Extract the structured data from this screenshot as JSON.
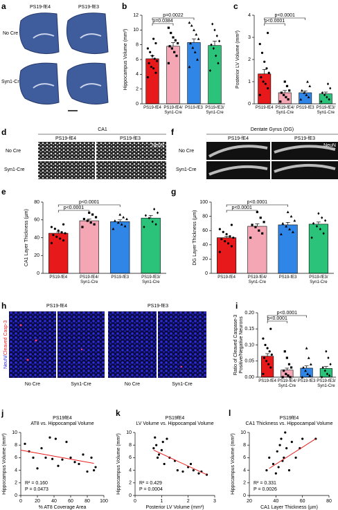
{
  "image_panels": [
    {
      "panel": "a",
      "columns": [
        "PS19-fE4",
        "PS19-fE3"
      ],
      "rows": [
        "No Cre",
        "Syn1-Cre"
      ]
    },
    {
      "panel": "d",
      "title": "CA1",
      "columns": [
        "PS19-fE4",
        "PS19-fE3"
      ],
      "rows": [
        "No Cre",
        "Syn1-Cre"
      ],
      "stain": "NeuN"
    },
    {
      "panel": "f",
      "title": "Dentate Gyrus (DG)",
      "columns": [
        "PS19-fE4",
        "PS19-fE3"
      ],
      "rows": [
        "No Cre",
        "Syn1-Cre"
      ],
      "stain": "NeuN"
    },
    {
      "panel": "h",
      "columns": [
        "PS19-fE4",
        "PS19-fE3"
      ],
      "bottom": [
        "No Cre",
        "Syn1-Cre",
        "No Cre",
        "Syn1-Cre"
      ],
      "stain": [
        "NeuN/",
        "Cleaved Casp-3"
      ]
    }
  ],
  "chart_data": [
    {
      "type": "bar",
      "panel": "b",
      "ylabel": "Hippocampus Volume (mm³)",
      "categories": [
        "PS19-fE4",
        "PS19-fE4/\nSyn1-Cre",
        "PS19-fE3",
        "PS19-fE3/\nSyn1-Cre"
      ],
      "values": [
        6.1,
        7.8,
        8.3,
        7.9
      ],
      "errors": [
        0.4,
        0.5,
        0.5,
        0.6
      ],
      "colors": [
        "#e8191a",
        "#f4a6b4",
        "#2f86e6",
        "#2bc27a"
      ],
      "markers": [
        "circle",
        "square",
        "triangle",
        "diamond"
      ],
      "points": [
        [
          3.6,
          4.2,
          4.8,
          5.0,
          5.5,
          5.8,
          6.1,
          6.5,
          7.0,
          7.5,
          8.2,
          8.8
        ],
        [
          5.5,
          6.5,
          7.0,
          7.5,
          7.8,
          8.2,
          8.6,
          9.0,
          9.6,
          10.3
        ],
        [
          5.0,
          6.0,
          7.0,
          7.6,
          8.2,
          8.8,
          9.4,
          10.0,
          10.6,
          11.0
        ],
        [
          4.5,
          5.5,
          6.5,
          7.5,
          8.0,
          8.5,
          9.2,
          10.0,
          10.8
        ]
      ],
      "comparisons": [
        {
          "pair": [
            0,
            1
          ],
          "label": "p=0.0384"
        },
        {
          "pair": [
            0,
            2
          ],
          "label": "p=0.0022"
        }
      ],
      "ylim": [
        0,
        12
      ],
      "yticks": [
        0,
        2,
        4,
        6,
        8,
        10,
        12
      ]
    },
    {
      "type": "bar",
      "panel": "c",
      "ylabel": "Posterior LV Volume (mm³)",
      "categories": [
        "PS19-fE4",
        "PS19-fE4/\nSyn1-Cre",
        "PS19-fE3",
        "PS19-fE3/\nSyn1-Cre"
      ],
      "values": [
        1.35,
        0.5,
        0.5,
        0.45
      ],
      "errors": [
        0.2,
        0.1,
        0.08,
        0.08
      ],
      "colors": [
        "#e8191a",
        "#f4a6b4",
        "#2f86e6",
        "#2bc27a"
      ],
      "markers": [
        "circle",
        "square",
        "triangle",
        "diamond"
      ],
      "points": [
        [
          0.4,
          0.7,
          0.9,
          1.0,
          1.2,
          1.4,
          1.6,
          1.9,
          2.3,
          2.7,
          3.2
        ],
        [
          0.1,
          0.2,
          0.3,
          0.4,
          0.5,
          0.6,
          0.8,
          1.0
        ],
        [
          0.2,
          0.3,
          0.4,
          0.5,
          0.6,
          0.8,
          1.0
        ],
        [
          0.1,
          0.2,
          0.3,
          0.4,
          0.5,
          0.7,
          0.9
        ]
      ],
      "comparisons": [
        {
          "pair": [
            0,
            1
          ],
          "label": "p<0.0001"
        },
        {
          "pair": [
            0,
            2
          ],
          "label": "p<0.0001"
        }
      ],
      "ylim": [
        0,
        4
      ],
      "yticks": [
        0,
        1,
        2,
        3,
        4
      ]
    },
    {
      "type": "bar",
      "panel": "e",
      "ylabel": "CA1 Layer Thickness (µm)",
      "categories": [
        "PS19-fE4",
        "PS19-fE4/\nSyn1-Cre",
        "PS19-fE3",
        "PS19-fE3/\nSyn1-Cre"
      ],
      "values": [
        45,
        59,
        58,
        62
      ],
      "errors": [
        1.5,
        2,
        2,
        3
      ],
      "colors": [
        "#e8191a",
        "#f4a6b4",
        "#2f86e6",
        "#2bc27a"
      ],
      "markers": [
        "circle",
        "square",
        "triangle",
        "diamond"
      ],
      "points": [
        [
          34,
          37,
          39,
          41,
          43,
          45,
          46,
          48,
          50,
          52,
          55
        ],
        [
          52,
          55,
          57,
          59,
          61,
          63,
          66,
          68
        ],
        [
          50,
          53,
          55,
          57,
          59,
          61,
          63,
          66
        ],
        [
          52,
          55,
          58,
          62,
          65,
          68,
          72
        ]
      ],
      "comparisons": [
        {
          "pair": [
            0,
            1
          ],
          "label": "p<0.0001"
        },
        {
          "pair": [
            0,
            2
          ],
          "label": "p<0.0001"
        }
      ],
      "ylim": [
        0,
        80
      ],
      "yticks": [
        0,
        20,
        40,
        60,
        80
      ]
    },
    {
      "type": "bar",
      "panel": "g",
      "ylabel": "DG Layer Thickness (µm)",
      "categories": [
        "PS19-fE4",
        "PS19-fE4/\nSyn1-Cre",
        "PS19-fE3",
        "PS19-fE3/\nSyn1-Cre"
      ],
      "values": [
        50,
        66,
        68,
        69
      ],
      "errors": [
        2,
        3.5,
        3.5,
        3
      ],
      "colors": [
        "#e8191a",
        "#f4a6b4",
        "#2f86e6",
        "#2bc27a"
      ],
      "markers": [
        "circle",
        "square",
        "triangle",
        "diamond"
      ],
      "points": [
        [
          30,
          38,
          42,
          45,
          48,
          50,
          52,
          55,
          58,
          62,
          68
        ],
        [
          50,
          56,
          60,
          65,
          68,
          72,
          78,
          86
        ],
        [
          55,
          58,
          62,
          66,
          70,
          74,
          80,
          86
        ],
        [
          50,
          56,
          62,
          66,
          70,
          74,
          78,
          84
        ]
      ],
      "comparisons": [
        {
          "pair": [
            0,
            1
          ],
          "label": "p<0.0001"
        },
        {
          "pair": [
            0,
            2
          ],
          "label": "p<0.0001"
        }
      ],
      "ylim": [
        0,
        100
      ],
      "yticks": [
        0,
        20,
        40,
        60,
        80,
        100
      ]
    },
    {
      "type": "bar",
      "panel": "i",
      "ylabel": [
        "Ratio of Cleaved Caspase-3",
        "Positive/Negative Neurons"
      ],
      "categories": [
        "PS19-fE4",
        "PS19-fE4/\nSyn1-Cre",
        "PS19-fE3",
        "PS19-fE3/\nSyn1-Cre"
      ],
      "values": [
        0.065,
        0.022,
        0.028,
        0.027
      ],
      "errors": [
        0.008,
        0.006,
        0.007,
        0.006
      ],
      "colors": [
        "#e8191a",
        "#f4a6b4",
        "#2f86e6",
        "#2bc27a"
      ],
      "markers": [
        "circle",
        "square",
        "triangle",
        "diamond"
      ],
      "points": [
        [
          0.01,
          0.03,
          0.04,
          0.05,
          0.06,
          0.07,
          0.08,
          0.09,
          0.1,
          0.12,
          0.15
        ],
        [
          0,
          0,
          0.005,
          0.01,
          0.02,
          0.03,
          0.04,
          0.06,
          0.08
        ],
        [
          0,
          0.005,
          0.01,
          0.02,
          0.03,
          0.04,
          0.06,
          0.09
        ],
        [
          0,
          0.005,
          0.01,
          0.02,
          0.03,
          0.04,
          0.06,
          0.08
        ]
      ],
      "comparisons": [
        {
          "pair": [
            0,
            1
          ],
          "label": "p<0.0001"
        },
        {
          "pair": [
            0,
            2
          ],
          "label": "p<0.0001"
        }
      ],
      "ylim": [
        0,
        0.2
      ],
      "yticks": [
        {
          "value": 0,
          "label": "0.00"
        },
        {
          "value": 0.05,
          "label": "0.05"
        },
        {
          "value": 0.1,
          "label": "0.10"
        },
        {
          "value": 0.15,
          "label": "0.15"
        },
        {
          "value": 0.2,
          "label": "0.20"
        }
      ]
    },
    {
      "type": "scatter",
      "panel": "j",
      "title": "PS19fE4",
      "subtitle": "AT8 vs. Hippocampal Volume",
      "xlabel": "% AT8 Coverage Area",
      "ylabel": "Hippocampus Volume (mm³)",
      "x": [
        5,
        10,
        15,
        20,
        25,
        30,
        35,
        38,
        42,
        45,
        50,
        55,
        60,
        65,
        70,
        75,
        80,
        85,
        88,
        90
      ],
      "values": [
        8.2,
        7.0,
        6.0,
        4.3,
        7.5,
        6.0,
        9.2,
        5.8,
        9.0,
        4.7,
        5.7,
        8.5,
        6.0,
        5.3,
        5.0,
        6.5,
        3.8,
        6.0,
        4.0,
        4.5
      ],
      "fit": {
        "x": [
          0,
          88
        ],
        "values": [
          7.2,
          5.1
        ]
      },
      "color": "#000000",
      "fit_color": "#e8191a",
      "stats": [
        "R² = 0.160",
        "P = 0.0473"
      ],
      "xlim": [
        0,
        100
      ],
      "xticks": [
        0,
        20,
        40,
        60,
        80,
        100
      ],
      "ylim": [
        0,
        10
      ],
      "yticks": [
        0,
        2,
        4,
        6,
        8,
        10
      ]
    },
    {
      "type": "scatter",
      "panel": "k",
      "title": "PS19fE4",
      "subtitle": "LV Volume vs. Hippocampal Volume",
      "xlabel": "Posterior LV Volume (mm³)",
      "ylabel": "Hippocampus Volume (mm³)",
      "x": [
        0.7,
        0.75,
        0.8,
        0.85,
        0.9,
        1.0,
        1.05,
        1.1,
        1.2,
        1.3,
        1.5,
        1.6,
        1.8,
        2.0,
        2.1,
        2.2,
        2.4,
        2.5,
        2.7
      ],
      "values": [
        7.5,
        9.2,
        8.0,
        6.0,
        6.5,
        7.2,
        8.5,
        5.0,
        9.0,
        6.0,
        5.5,
        4.0,
        3.8,
        4.5,
        5.0,
        4.0,
        3.5,
        3.8,
        3.3
      ],
      "fit": {
        "x": [
          0.7,
          2.7
        ],
        "values": [
          7.2,
          3.3
        ]
      },
      "color": "#000000",
      "fit_color": "#e8191a",
      "stats": [
        "R² = 0.429",
        "P = 0.0004"
      ],
      "xlim": [
        0,
        3
      ],
      "xticks": [
        0,
        1,
        2,
        3
      ],
      "ylim": [
        0,
        10
      ],
      "yticks": [
        0,
        2,
        4,
        6,
        8,
        10
      ]
    },
    {
      "type": "scatter",
      "panel": "l",
      "title": "PS19fE4",
      "subtitle": "CA1 Thickness vs. Hippocampal Volume",
      "xlabel": "CA1 Layer Thickness (µm)",
      "ylabel": "Hippocampus Volume (mm³)",
      "x": [
        33,
        35,
        38,
        40,
        41,
        42,
        43,
        44,
        45,
        46,
        47,
        48,
        50,
        52,
        55,
        58,
        60,
        70
      ],
      "values": [
        4.0,
        6.0,
        5.0,
        3.5,
        7.0,
        4.5,
        8.0,
        9.0,
        5.5,
        6.0,
        10.0,
        7.5,
        4.0,
        8.5,
        6.0,
        7.5,
        9.0,
        9.0
      ],
      "fit": {
        "x": [
          35,
          70
        ],
        "values": [
          4.3,
          9
        ]
      },
      "color": "#000000",
      "fit_color": "#e8191a",
      "stats": [
        "R² = 0.331",
        "P = 0.0026"
      ],
      "xlim": [
        20,
        80
      ],
      "xticks": [
        20,
        40,
        60,
        80
      ],
      "ylim": [
        0,
        10
      ],
      "yticks": [
        0,
        2,
        4,
        6,
        8,
        10
      ]
    }
  ]
}
